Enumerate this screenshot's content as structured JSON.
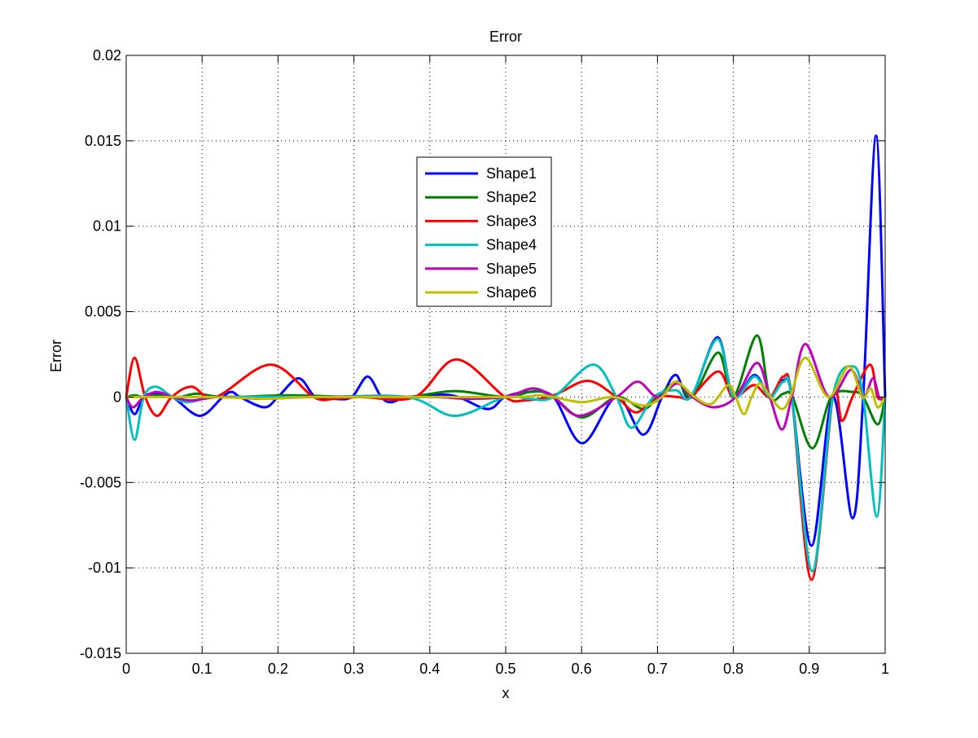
{
  "chart_data": {
    "type": "line",
    "title": "Error",
    "xlabel": "x",
    "ylabel": "Error",
    "xlim": [
      0,
      1
    ],
    "ylim": [
      -0.015,
      0.02
    ],
    "grid": true,
    "legend_position": "upper-center",
    "x_ticks": [
      0,
      0.1,
      0.2,
      0.3,
      0.4,
      0.5,
      0.6,
      0.7,
      0.8,
      0.9,
      1
    ],
    "x_tick_labels": [
      "0",
      "0.1",
      "0.2",
      "0.3",
      "0.4",
      "0.5",
      "0.6",
      "0.7",
      "0.8",
      "0.9",
      "1"
    ],
    "y_ticks": [
      -0.015,
      -0.01,
      -0.005,
      0,
      0.005,
      0.01,
      0.015,
      0.02
    ],
    "y_tick_labels": [
      "-0.015",
      "-0.01",
      "-0.005",
      "0",
      "0.005",
      "0.01",
      "0.015",
      "0.02"
    ],
    "series": [
      {
        "name": "Shape1",
        "color": "#0000ff",
        "points": [
          [
            0,
            0
          ],
          [
            0.011,
            -0.001
          ],
          [
            0.023,
            0
          ],
          [
            0.039,
            0.0002
          ],
          [
            0.061,
            0
          ],
          [
            0.097,
            -0.0011
          ],
          [
            0.127,
            0
          ],
          [
            0.139,
            0.0003
          ],
          [
            0.15,
            0
          ],
          [
            0.182,
            -0.0006
          ],
          [
            0.2,
            0
          ],
          [
            0.227,
            0.0011
          ],
          [
            0.249,
            0
          ],
          [
            0.272,
            -0.0001
          ],
          [
            0.297,
            0
          ],
          [
            0.318,
            0.0012
          ],
          [
            0.336,
            0
          ],
          [
            0.349,
            -0.0003
          ],
          [
            0.372,
            0
          ],
          [
            0.429,
            0.0001
          ],
          [
            0.476,
            -0.0007
          ],
          [
            0.499,
            0
          ],
          [
            0.531,
            0.0003
          ],
          [
            0.563,
            0
          ],
          [
            0.601,
            -0.0027
          ],
          [
            0.646,
            0
          ],
          [
            0.681,
            -0.0022
          ],
          [
            0.706,
            0
          ],
          [
            0.724,
            0.0013
          ],
          [
            0.744,
            0
          ],
          [
            0.779,
            0.0035
          ],
          [
            0.8,
            0
          ],
          [
            0.828,
            0.0013
          ],
          [
            0.848,
            0
          ],
          [
            0.866,
            0.001
          ],
          [
            0.877,
            0
          ],
          [
            0.903,
            -0.0087
          ],
          [
            0.931,
            0
          ],
          [
            0.957,
            -0.0071
          ],
          [
            0.971,
            0
          ],
          [
            0.988,
            0.0153
          ],
          [
            1,
            0
          ]
        ]
      },
      {
        "name": "Shape2",
        "color": "#008000",
        "points": [
          [
            0,
            0
          ],
          [
            0.011,
            0.0001
          ],
          [
            0.023,
            0
          ],
          [
            0.043,
            0.0001
          ],
          [
            0.07,
            0
          ],
          [
            0.093,
            0.0002
          ],
          [
            0.129,
            0
          ],
          [
            0.215,
            0.0001
          ],
          [
            0.3,
            0
          ],
          [
            0.37,
            0
          ],
          [
            0.433,
            0.00035
          ],
          [
            0.499,
            0
          ],
          [
            0.538,
            0.00035
          ],
          [
            0.563,
            0
          ],
          [
            0.601,
            -0.0012
          ],
          [
            0.646,
            0
          ],
          [
            0.681,
            -0.0007
          ],
          [
            0.7,
            0
          ],
          [
            0.726,
            0.0009
          ],
          [
            0.746,
            0
          ],
          [
            0.78,
            0.0026
          ],
          [
            0.8,
            0
          ],
          [
            0.831,
            0.0036
          ],
          [
            0.848,
            0
          ],
          [
            0.866,
            0.0002
          ],
          [
            0.878,
            0
          ],
          [
            0.904,
            -0.003
          ],
          [
            0.929,
            0
          ],
          [
            0.957,
            0.0003
          ],
          [
            0.971,
            0
          ],
          [
            0.99,
            -0.0016
          ],
          [
            1,
            0
          ]
        ]
      },
      {
        "name": "Shape3",
        "color": "#ff0000",
        "points": [
          [
            0,
            0
          ],
          [
            0.011,
            0.0023
          ],
          [
            0.025,
            0
          ],
          [
            0.041,
            -0.0011
          ],
          [
            0.06,
            0
          ],
          [
            0.086,
            0.0006
          ],
          [
            0.118,
            0
          ],
          [
            0.19,
            0.0019
          ],
          [
            0.247,
            0
          ],
          [
            0.275,
            -0.0001
          ],
          [
            0.31,
            0
          ],
          [
            0.38,
            0
          ],
          [
            0.435,
            0.0022
          ],
          [
            0.499,
            0
          ],
          [
            0.524,
            -0.0002
          ],
          [
            0.563,
            0.0001
          ],
          [
            0.608,
            0.00095
          ],
          [
            0.646,
            0
          ],
          [
            0.672,
            -0.0009
          ],
          [
            0.699,
            0
          ],
          [
            0.727,
            0
          ],
          [
            0.744,
            0
          ],
          [
            0.78,
            0.0015
          ],
          [
            0.8,
            0
          ],
          [
            0.827,
            0.0007
          ],
          [
            0.848,
            0
          ],
          [
            0.866,
            0.0012
          ],
          [
            0.877,
            0
          ],
          [
            0.903,
            -0.0107
          ],
          [
            0.931,
            0
          ],
          [
            0.943,
            -0.0014
          ],
          [
            0.957,
            0
          ],
          [
            0.98,
            0.0019
          ],
          [
            0.99,
            0
          ],
          [
            1,
            0
          ]
        ]
      },
      {
        "name": "Shape4",
        "color": "#00bfbf",
        "points": [
          [
            0,
            0
          ],
          [
            0.011,
            -0.0025
          ],
          [
            0.023,
            0
          ],
          [
            0.039,
            0.0006
          ],
          [
            0.061,
            0
          ],
          [
            0.082,
            -0.0003
          ],
          [
            0.122,
            0
          ],
          [
            0.25,
            0
          ],
          [
            0.37,
            0
          ],
          [
            0.433,
            -0.0011
          ],
          [
            0.499,
            0
          ],
          [
            0.531,
            -0.0001
          ],
          [
            0.563,
            0
          ],
          [
            0.615,
            0.0019
          ],
          [
            0.646,
            0
          ],
          [
            0.666,
            -0.0018
          ],
          [
            0.695,
            0
          ],
          [
            0.724,
            0.0004
          ],
          [
            0.744,
            0
          ],
          [
            0.779,
            0.0034
          ],
          [
            0.8,
            0
          ],
          [
            0.828,
            0.0012
          ],
          [
            0.848,
            0
          ],
          [
            0.866,
            0.0009
          ],
          [
            0.877,
            0
          ],
          [
            0.904,
            -0.0102
          ],
          [
            0.931,
            0
          ],
          [
            0.957,
            0.0018
          ],
          [
            0.971,
            0
          ],
          [
            0.989,
            -0.007
          ],
          [
            1,
            0
          ]
        ]
      },
      {
        "name": "Shape5",
        "color": "#bf00bf",
        "points": [
          [
            0,
            0
          ],
          [
            0.009,
            -0.0006
          ],
          [
            0.023,
            0
          ],
          [
            0.041,
            0.0003
          ],
          [
            0.061,
            0
          ],
          [
            0.086,
            -0.0002
          ],
          [
            0.122,
            0
          ],
          [
            0.179,
            -0.0001
          ],
          [
            0.25,
            0
          ],
          [
            0.4,
            0
          ],
          [
            0.447,
            -0.0001
          ],
          [
            0.499,
            0
          ],
          [
            0.536,
            0.0005
          ],
          [
            0.563,
            0
          ],
          [
            0.597,
            -0.0011
          ],
          [
            0.646,
            0
          ],
          [
            0.674,
            0.0009
          ],
          [
            0.7,
            0
          ],
          [
            0.726,
            0.0008
          ],
          [
            0.746,
            0
          ],
          [
            0.774,
            -0.0006
          ],
          [
            0.803,
            0
          ],
          [
            0.831,
            0.002
          ],
          [
            0.848,
            0
          ],
          [
            0.864,
            -0.0019
          ],
          [
            0.877,
            0
          ],
          [
            0.895,
            0.0031
          ],
          [
            0.926,
            0
          ],
          [
            0.955,
            0.0016
          ],
          [
            0.971,
            0
          ],
          [
            0.984,
            0.0011
          ],
          [
            0.992,
            0
          ],
          [
            1,
            0
          ]
        ]
      },
      {
        "name": "Shape6",
        "color": "#bfbf00",
        "points": [
          [
            0,
            0
          ],
          [
            0.1,
            0
          ],
          [
            0.15,
            -5e-05
          ],
          [
            0.19,
            -0.0001
          ],
          [
            0.25,
            0
          ],
          [
            0.5,
            0
          ],
          [
            0.542,
            0.0001
          ],
          [
            0.563,
            0
          ],
          [
            0.601,
            -0.0003
          ],
          [
            0.642,
            0
          ],
          [
            0.681,
            -0.0005
          ],
          [
            0.706,
            0
          ],
          [
            0.724,
            0.0009
          ],
          [
            0.749,
            0
          ],
          [
            0.771,
            -0.0004
          ],
          [
            0.793,
            0.0007
          ],
          [
            0.803,
            0
          ],
          [
            0.814,
            -0.001
          ],
          [
            0.824,
            0
          ],
          [
            0.835,
            0.0008
          ],
          [
            0.849,
            0
          ],
          [
            0.864,
            -0.0007
          ],
          [
            0.875,
            0
          ],
          [
            0.895,
            0.0023
          ],
          [
            0.925,
            0
          ],
          [
            0.952,
            0.0018
          ],
          [
            0.97,
            0
          ],
          [
            0.981,
            0.0005
          ],
          [
            0.99,
            -0.0006
          ],
          [
            1,
            0
          ]
        ]
      }
    ]
  }
}
